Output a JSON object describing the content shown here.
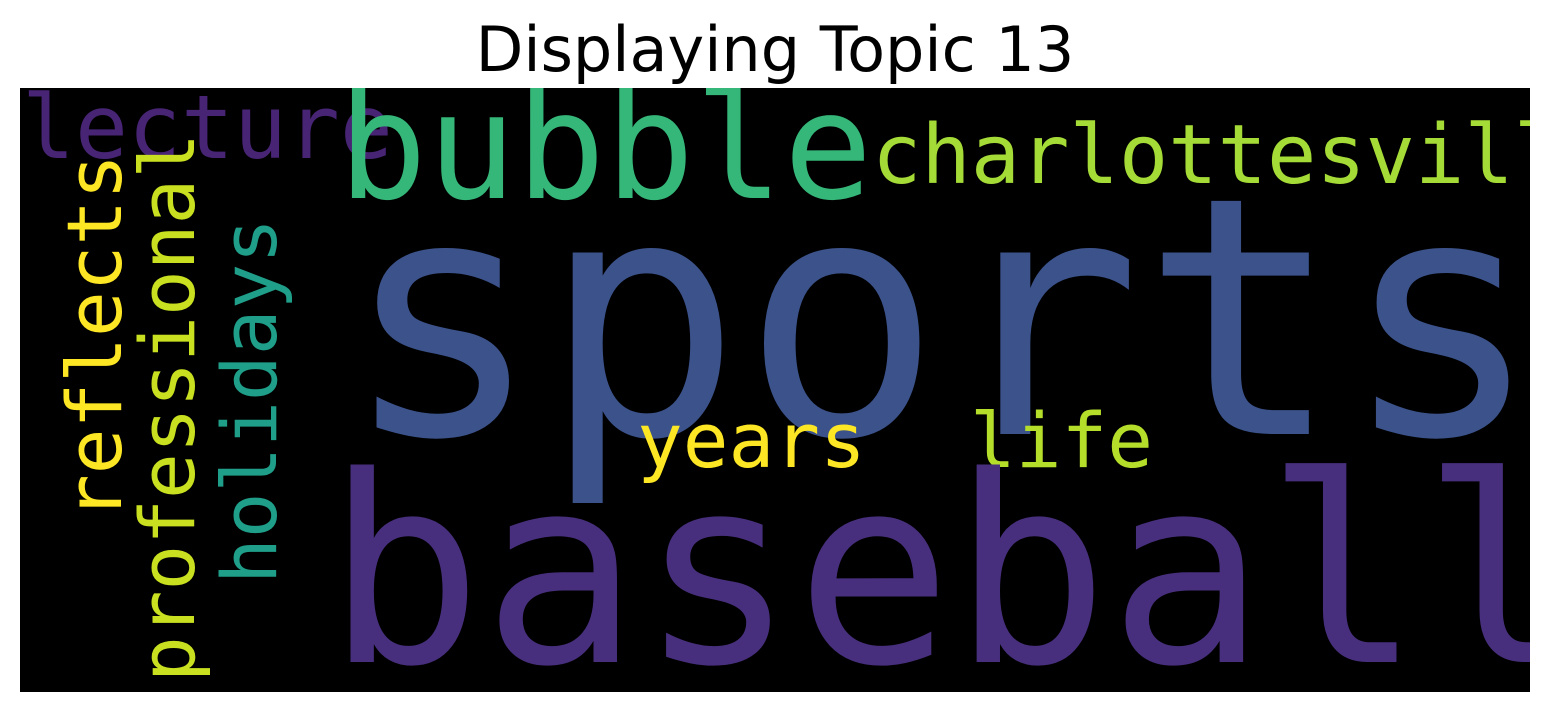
{
  "title": "Displaying Topic 13",
  "words": {
    "sports": {
      "text": "sports",
      "color": "#3b528b"
    },
    "baseball": {
      "text": "baseball",
      "color": "#472f7d"
    },
    "bubble": {
      "text": "bubble",
      "color": "#35b779"
    },
    "charlottesville": {
      "text": "charlottesville",
      "color": "#a5db36"
    },
    "lecture": {
      "text": "lecture",
      "color": "#482475"
    },
    "years": {
      "text": "years",
      "color": "#fde725"
    },
    "life": {
      "text": "life",
      "color": "#b5de2b"
    },
    "reflects": {
      "text": "reflects",
      "color": "#fde725"
    },
    "professional": {
      "text": "professional",
      "color": "#c8e020"
    },
    "holidays": {
      "text": "holidays",
      "color": "#1f9e89"
    }
  },
  "background_color": "#000000"
}
